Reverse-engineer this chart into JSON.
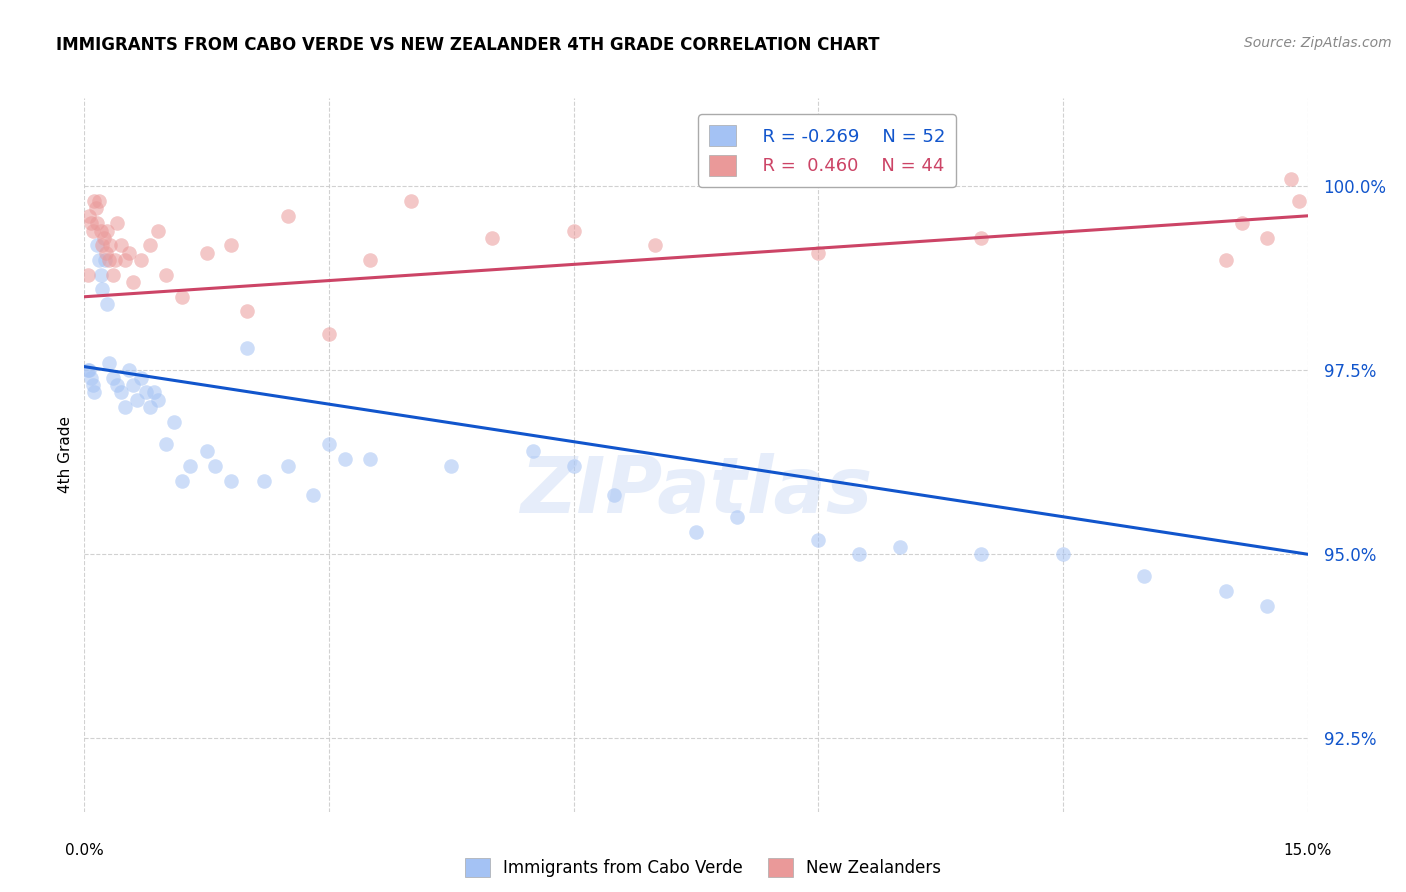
{
  "title": "IMMIGRANTS FROM CABO VERDE VS NEW ZEALANDER 4TH GRADE CORRELATION CHART",
  "source": "Source: ZipAtlas.com",
  "ylabel": "4th Grade",
  "ytick_values": [
    92.5,
    95.0,
    97.5,
    100.0
  ],
  "xlim": [
    0.0,
    15.0
  ],
  "ylim": [
    91.5,
    101.2
  ],
  "legend_blue_r": "-0.269",
  "legend_blue_n": "52",
  "legend_pink_r": "0.460",
  "legend_pink_n": "44",
  "blue_color": "#a4c2f4",
  "pink_color": "#ea9999",
  "blue_line_color": "#1155cc",
  "pink_line_color": "#cc4466",
  "watermark": "ZIPatlas",
  "blue_x": [
    0.05,
    0.08,
    0.1,
    0.12,
    0.15,
    0.18,
    0.2,
    0.22,
    0.25,
    0.28,
    0.3,
    0.35,
    0.4,
    0.45,
    0.5,
    0.55,
    0.6,
    0.65,
    0.7,
    0.75,
    0.8,
    0.85,
    0.9,
    1.0,
    1.1,
    1.2,
    1.3,
    1.5,
    1.6,
    1.8,
    2.0,
    2.2,
    2.5,
    2.8,
    3.0,
    3.2,
    3.5,
    4.5,
    5.5,
    6.0,
    6.5,
    7.5,
    8.0,
    9.0,
    9.5,
    10.0,
    11.0,
    12.0,
    13.0,
    14.0,
    14.5,
    0.06
  ],
  "blue_y": [
    97.5,
    97.4,
    97.3,
    97.2,
    99.2,
    99.0,
    98.8,
    98.6,
    99.0,
    98.4,
    97.6,
    97.4,
    97.3,
    97.2,
    97.0,
    97.5,
    97.3,
    97.1,
    97.4,
    97.2,
    97.0,
    97.2,
    97.1,
    96.5,
    96.8,
    96.0,
    96.2,
    96.4,
    96.2,
    96.0,
    97.8,
    96.0,
    96.2,
    95.8,
    96.5,
    96.3,
    96.3,
    96.2,
    96.4,
    96.2,
    95.8,
    95.3,
    95.5,
    95.2,
    95.0,
    95.1,
    95.0,
    95.0,
    94.7,
    94.5,
    94.3,
    97.5
  ],
  "pink_x": [
    0.04,
    0.06,
    0.08,
    0.1,
    0.12,
    0.14,
    0.15,
    0.18,
    0.2,
    0.22,
    0.24,
    0.26,
    0.28,
    0.3,
    0.32,
    0.35,
    0.38,
    0.4,
    0.45,
    0.5,
    0.55,
    0.6,
    0.7,
    0.8,
    0.9,
    1.0,
    1.2,
    1.5,
    1.8,
    2.0,
    2.5,
    3.0,
    3.5,
    4.0,
    5.0,
    6.0,
    7.0,
    9.0,
    11.0,
    14.0,
    14.2,
    14.5,
    14.8,
    14.9
  ],
  "pink_y": [
    98.8,
    99.6,
    99.5,
    99.4,
    99.8,
    99.7,
    99.5,
    99.8,
    99.4,
    99.2,
    99.3,
    99.1,
    99.4,
    99.0,
    99.2,
    98.8,
    99.0,
    99.5,
    99.2,
    99.0,
    99.1,
    98.7,
    99.0,
    99.2,
    99.4,
    98.8,
    98.5,
    99.1,
    99.2,
    98.3,
    99.6,
    98.0,
    99.0,
    99.8,
    99.3,
    99.4,
    99.2,
    99.1,
    99.3,
    99.0,
    99.5,
    99.3,
    100.1,
    99.8
  ],
  "blue_trend_x": [
    0.0,
    15.0
  ],
  "blue_trend_y": [
    97.55,
    95.0
  ],
  "pink_trend_x": [
    0.0,
    15.0
  ],
  "pink_trend_y": [
    98.5,
    99.6
  ],
  "background_color": "#ffffff",
  "grid_color": "#cccccc"
}
